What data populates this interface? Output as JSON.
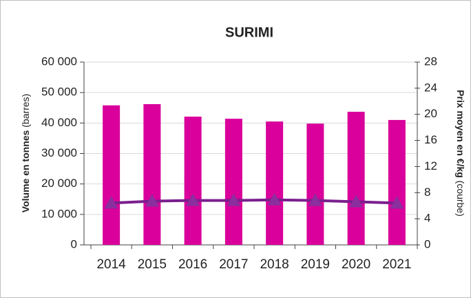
{
  "chart_data": {
    "type": "bar",
    "title": "SURIMI",
    "y_label": "Volume en tonnes",
    "y_label_note": "(barres)",
    "y2_label": "Prix moyen en €/kg",
    "y2_label_note": "(courbe)",
    "categories": [
      "2014",
      "2015",
      "2016",
      "2017",
      "2018",
      "2019",
      "2020",
      "2021"
    ],
    "series": [
      {
        "type": "bar",
        "color": "#d9009b",
        "values": [
          45800,
          46200,
          42100,
          41400,
          40500,
          39800,
          43700,
          41000
        ]
      },
      {
        "type": "line",
        "axis": "y2",
        "color": "#7a1f8e",
        "marker_color": "#8b2e9e",
        "values": [
          6.4,
          6.7,
          6.8,
          6.8,
          6.9,
          6.8,
          6.6,
          6.4
        ]
      }
    ],
    "ylim": [
      0,
      60000
    ],
    "yticks": [
      0,
      {
        "value": 10000,
        "label": "10 000"
      },
      {
        "value": 20000,
        "label": "20 000"
      },
      {
        "value": 30000,
        "label": "30 000"
      },
      {
        "value": 40000,
        "label": "40 000"
      },
      {
        "value": 50000,
        "label": "50 000"
      },
      {
        "value": 60000,
        "label": "60 000"
      }
    ],
    "y2lim": [
      0,
      28
    ],
    "y2ticks": [
      0,
      4,
      8,
      12,
      16,
      20,
      24,
      28
    ],
    "grid": true
  }
}
